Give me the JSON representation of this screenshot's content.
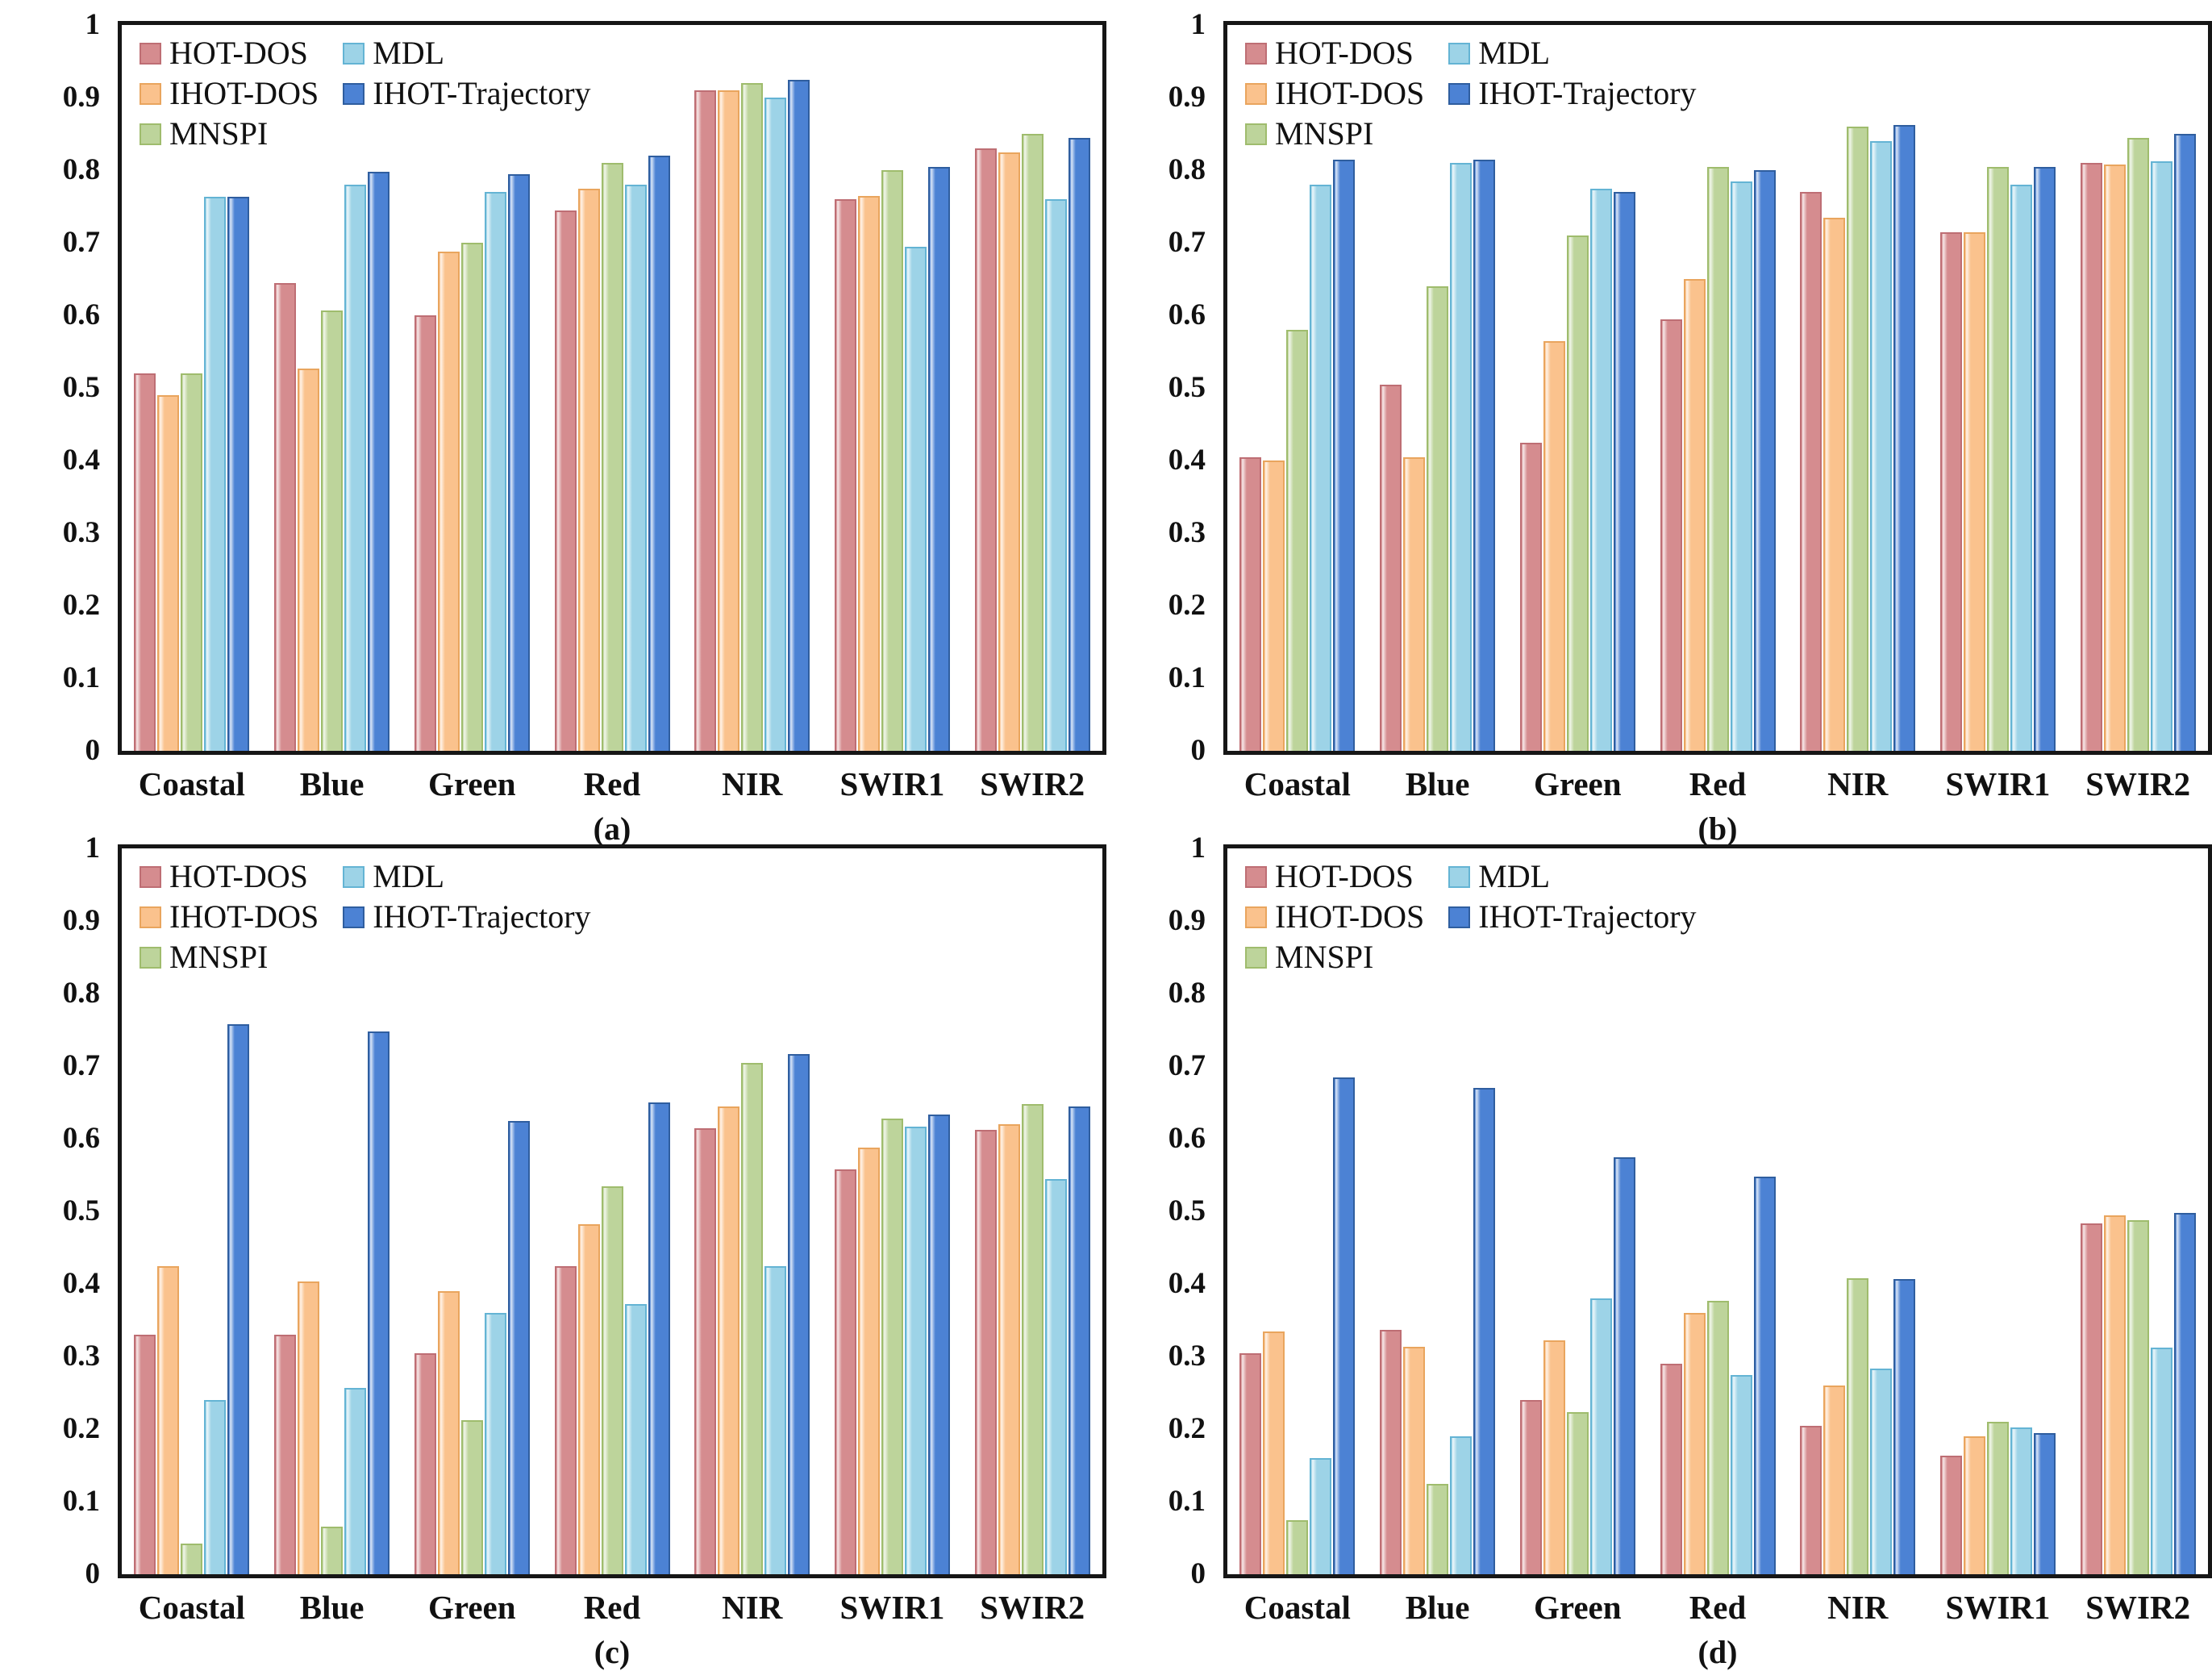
{
  "page": {
    "background": "#ffffff",
    "frame_color": "#161616"
  },
  "y_ticks": [
    "1",
    "0.9",
    "0.8",
    "0.7",
    "0.6",
    "0.5",
    "0.4",
    "0.3",
    "0.2",
    "0.1",
    "0"
  ],
  "legend_order": [
    "HOT-DOS",
    "MDL",
    "IHOT-DOS",
    "IHOT-Trajectory",
    "MNSPI"
  ],
  "series_styles": {
    "HOT-DOS": {
      "fill": "#D58C8F",
      "border": "#BE6E74"
    },
    "IHOT-DOS": {
      "fill": "#FAC28D",
      "border": "#E9A55E"
    },
    "MNSPI": {
      "fill": "#BDD49B",
      "border": "#9FBC6D"
    },
    "MDL": {
      "fill": "#9DD3E7",
      "border": "#64B4D4"
    },
    "IHOT-Trajectory": {
      "fill": "#4C82D4",
      "border": "#2F5E9F"
    }
  },
  "chart_data": [
    {
      "type": "bar",
      "caption": "(a)",
      "ylim": [
        0,
        1
      ],
      "grid": false,
      "legend_position": "top-left",
      "categories": [
        "Coastal",
        "Blue",
        "Green",
        "Red",
        "NIR",
        "SWIR1",
        "SWIR2"
      ],
      "series": [
        {
          "name": "HOT-DOS",
          "values": [
            0.52,
            0.645,
            0.6,
            0.745,
            0.91,
            0.76,
            0.83
          ]
        },
        {
          "name": "IHOT-DOS",
          "values": [
            0.49,
            0.527,
            0.688,
            0.775,
            0.91,
            0.765,
            0.825
          ]
        },
        {
          "name": "MNSPI",
          "values": [
            0.52,
            0.607,
            0.7,
            0.81,
            0.92,
            0.8,
            0.85
          ]
        },
        {
          "name": "MDL",
          "values": [
            0.763,
            0.78,
            0.77,
            0.78,
            0.9,
            0.695,
            0.76
          ]
        },
        {
          "name": "IHOT-Trajectory",
          "values": [
            0.763,
            0.798,
            0.795,
            0.82,
            0.925,
            0.805,
            0.845
          ]
        }
      ]
    },
    {
      "type": "bar",
      "caption": "(b)",
      "ylim": [
        0,
        1
      ],
      "grid": false,
      "legend_position": "top-left",
      "categories": [
        "Coastal",
        "Blue",
        "Green",
        "Red",
        "NIR",
        "SWIR1",
        "SWIR2"
      ],
      "series": [
        {
          "name": "HOT-DOS",
          "values": [
            0.405,
            0.505,
            0.425,
            0.595,
            0.77,
            0.715,
            0.81
          ]
        },
        {
          "name": "IHOT-DOS",
          "values": [
            0.4,
            0.405,
            0.565,
            0.65,
            0.735,
            0.715,
            0.808
          ]
        },
        {
          "name": "MNSPI",
          "values": [
            0.58,
            0.64,
            0.71,
            0.805,
            0.86,
            0.805,
            0.845
          ]
        },
        {
          "name": "MDL",
          "values": [
            0.78,
            0.81,
            0.775,
            0.785,
            0.84,
            0.78,
            0.812
          ]
        },
        {
          "name": "IHOT-Trajectory",
          "values": [
            0.815,
            0.815,
            0.77,
            0.8,
            0.862,
            0.805,
            0.85
          ]
        }
      ]
    },
    {
      "type": "bar",
      "caption": "(c)",
      "ylim": [
        0,
        1
      ],
      "grid": false,
      "legend_position": "top-left",
      "categories": [
        "Coastal",
        "Blue",
        "Green",
        "Red",
        "NIR",
        "SWIR1",
        "SWIR2"
      ],
      "series": [
        {
          "name": "HOT-DOS",
          "values": [
            0.33,
            0.33,
            0.305,
            0.425,
            0.615,
            0.558,
            0.612
          ]
        },
        {
          "name": "IHOT-DOS",
          "values": [
            0.425,
            0.403,
            0.39,
            0.482,
            0.645,
            0.588,
            0.62
          ]
        },
        {
          "name": "MNSPI",
          "values": [
            0.042,
            0.066,
            0.212,
            0.535,
            0.705,
            0.628,
            0.648
          ]
        },
        {
          "name": "MDL",
          "values": [
            0.24,
            0.257,
            0.36,
            0.372,
            0.425,
            0.617,
            0.545
          ]
        },
        {
          "name": "IHOT-Trajectory",
          "values": [
            0.758,
            0.748,
            0.625,
            0.65,
            0.717,
            0.633,
            0.645
          ]
        }
      ]
    },
    {
      "type": "bar",
      "caption": "(d)",
      "ylim": [
        0,
        1
      ],
      "grid": false,
      "legend_position": "top-left",
      "categories": [
        "Coastal",
        "Blue",
        "Green",
        "Red",
        "NIR",
        "SWIR1",
        "SWIR2"
      ],
      "series": [
        {
          "name": "HOT-DOS",
          "values": [
            0.305,
            0.337,
            0.24,
            0.29,
            0.205,
            0.163,
            0.483
          ]
        },
        {
          "name": "IHOT-DOS",
          "values": [
            0.335,
            0.313,
            0.322,
            0.36,
            0.26,
            0.19,
            0.494
          ]
        },
        {
          "name": "MNSPI",
          "values": [
            0.075,
            0.125,
            0.223,
            0.377,
            0.408,
            0.21,
            0.488
          ]
        },
        {
          "name": "MDL",
          "values": [
            0.16,
            0.19,
            0.38,
            0.275,
            0.283,
            0.202,
            0.312
          ]
        },
        {
          "name": "IHOT-Trajectory",
          "values": [
            0.685,
            0.67,
            0.575,
            0.548,
            0.407,
            0.195,
            0.498
          ]
        }
      ]
    }
  ]
}
